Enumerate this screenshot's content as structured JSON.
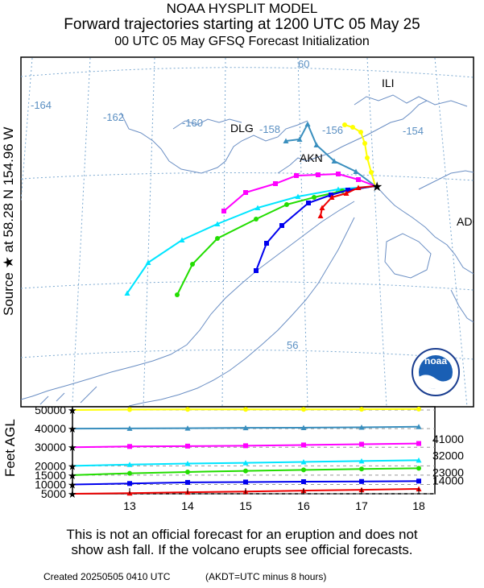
{
  "header": {
    "line1": "NOAA HYSPLIT MODEL",
    "line2": "Forward trajectories starting at 1200 UTC 05 May 25",
    "line3": "00 UTC 05 May    GFSQ  Forecast Initialization"
  },
  "source_label": "Source ★  at   58.28 N  154.96 W",
  "y_axis_label": "Feet AGL",
  "map": {
    "lon_labels": [
      "-164",
      "-162",
      "-160",
      "-158",
      "-156",
      "-154"
    ],
    "lat_labels": [
      "60",
      "56"
    ],
    "places": [
      "ILI",
      "DLG",
      "AKN",
      "ADQ"
    ],
    "logo_text": "noaa",
    "logo_ring_text": "NATIONAL OCEANIC AND ATMOSPHERIC ADMINISTRATION · U.S. DEPARTMENT OF COMMERCE"
  },
  "chart_data": {
    "type": "line",
    "y_tick_labels": [
      "50000",
      "40000",
      "30000",
      "20000",
      "15000",
      "10000",
      "5000"
    ],
    "y_right_labels": [
      "41000",
      "32000",
      "23000",
      "14000"
    ],
    "x_tick_labels": [
      "13",
      "14",
      "15",
      "16",
      "17",
      "18"
    ],
    "series": [
      {
        "color": "#ffff00",
        "marker": "circle",
        "values": [
          50000,
          50200,
          50300,
          50300,
          50300,
          50400,
          50500
        ]
      },
      {
        "color": "#3a8fbe",
        "marker": "triangle",
        "values": [
          40000,
          40100,
          40200,
          40400,
          40500,
          40700,
          41000
        ]
      },
      {
        "color": "#ff00ff",
        "marker": "square",
        "values": [
          30000,
          30400,
          30600,
          30800,
          31200,
          31600,
          32000
        ]
      },
      {
        "color": "#00e5ff",
        "marker": "triangle",
        "values": [
          20000,
          20700,
          21200,
          21600,
          22100,
          22600,
          23000
        ]
      },
      {
        "color": "#22dd00",
        "marker": "circle",
        "values": [
          15000,
          16000,
          16700,
          17300,
          17800,
          18300,
          18700
        ]
      },
      {
        "color": "#0000ee",
        "marker": "square",
        "values": [
          10000,
          10500,
          11100,
          11300,
          11500,
          11600,
          11800
        ]
      },
      {
        "color": "#ee0000",
        "marker": "triangle",
        "values": [
          5000,
          5300,
          5800,
          6200,
          6700,
          7100,
          7600
        ]
      }
    ]
  },
  "footer": {
    "disclaimer_line1": "This is not an official forecast for an eruption and does not",
    "disclaimer_line2": "show ash fall. If the volcano erupts see official forecasts.",
    "created": "Created 20250505 0410 UTC",
    "timezone_note": "(AKDT=UTC minus 8 hours)"
  }
}
